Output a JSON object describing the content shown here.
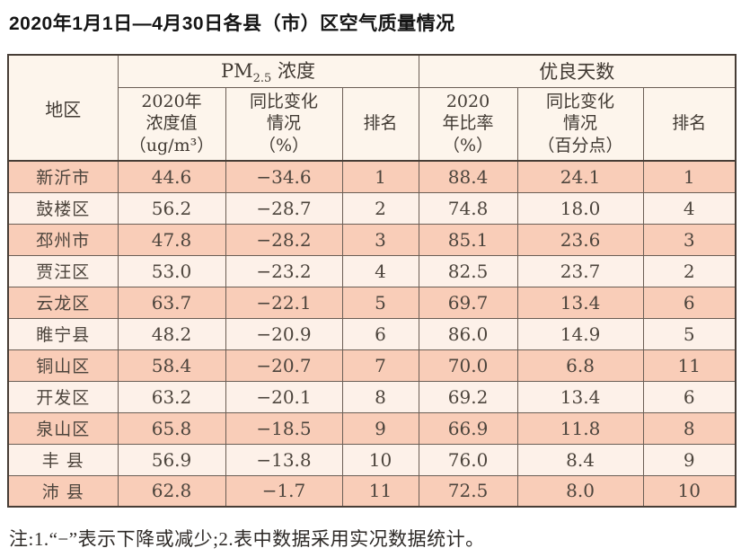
{
  "title": "2020年1月1日—4月30日各县（市）区空气质量情况",
  "table": {
    "header": {
      "region": "地区",
      "pm_prefix": "PM",
      "pm_sub": "2.5",
      "pm_suffix": " 浓度",
      "good_group": "优良天数",
      "pm_value": "2020年\n浓度值\n（ug/m³）",
      "pm_change": "同比变化\n情况\n（%）",
      "pm_rank": "排名",
      "good_ratio": "2020\n年比率\n（%）",
      "good_change": "同比变化\n情况\n（百分点）",
      "good_rank": "排名"
    },
    "rows": [
      {
        "region": "新沂市",
        "pm_value": "44.6",
        "pm_change": "−34.6",
        "pm_rank": "1",
        "good_ratio": "88.4",
        "good_change": "24.1",
        "good_rank": "1"
      },
      {
        "region": "鼓楼区",
        "pm_value": "56.2",
        "pm_change": "−28.7",
        "pm_rank": "2",
        "good_ratio": "74.8",
        "good_change": "18.0",
        "good_rank": "4"
      },
      {
        "region": "邳州市",
        "pm_value": "47.8",
        "pm_change": "−28.2",
        "pm_rank": "3",
        "good_ratio": "85.1",
        "good_change": "23.6",
        "good_rank": "3"
      },
      {
        "region": "贾汪区",
        "pm_value": "53.0",
        "pm_change": "−23.2",
        "pm_rank": "4",
        "good_ratio": "82.5",
        "good_change": "23.7",
        "good_rank": "2"
      },
      {
        "region": "云龙区",
        "pm_value": "63.7",
        "pm_change": "−22.1",
        "pm_rank": "5",
        "good_ratio": "69.7",
        "good_change": "13.4",
        "good_rank": "6"
      },
      {
        "region": "睢宁县",
        "pm_value": "48.2",
        "pm_change": "−20.9",
        "pm_rank": "6",
        "good_ratio": "86.0",
        "good_change": "14.9",
        "good_rank": "5"
      },
      {
        "region": "铜山区",
        "pm_value": "58.4",
        "pm_change": "−20.7",
        "pm_rank": "7",
        "good_ratio": "70.0",
        "good_change": "6.8",
        "good_rank": "11"
      },
      {
        "region": "开发区",
        "pm_value": "63.2",
        "pm_change": "−20.1",
        "pm_rank": "8",
        "good_ratio": "69.2",
        "good_change": "13.4",
        "good_rank": "6"
      },
      {
        "region": "泉山区",
        "pm_value": "65.8",
        "pm_change": "−18.5",
        "pm_rank": "9",
        "good_ratio": "66.9",
        "good_change": "11.8",
        "good_rank": "8"
      },
      {
        "region": "丰 县",
        "pm_value": "56.9",
        "pm_change": "−13.8",
        "pm_rank": "10",
        "good_ratio": "76.0",
        "good_change": "8.4",
        "good_rank": "9"
      },
      {
        "region": "沛 县",
        "pm_value": "62.8",
        "pm_change": "−1.7",
        "pm_rank": "11",
        "good_ratio": "72.5",
        "good_change": "8.0",
        "good_rank": "10"
      }
    ]
  },
  "note": "注:1.“−”表示下降或减少;2.表中数据采用实况数据统计。",
  "colors": {
    "row_odd": "#f9cdb8",
    "row_even": "#fdf1e9",
    "header_bg": "#fdf5ec",
    "border_dark": "#473d36",
    "border_inner": "#6b5e55"
  }
}
